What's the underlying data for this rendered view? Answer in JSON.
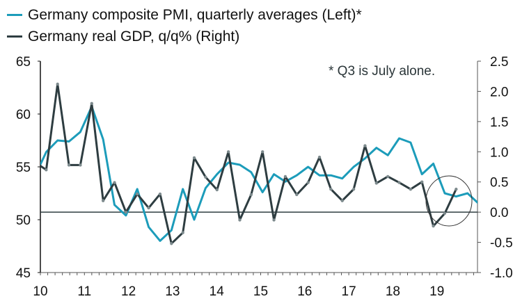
{
  "chart_data": {
    "type": "line",
    "title": "",
    "legend_placement": "top-left",
    "annotation": "* Q3 is July alone.",
    "x": [
      "2009Q4",
      "2010Q1",
      "2010Q2",
      "2010Q3",
      "2010Q4",
      "2011Q1",
      "2011Q2",
      "2011Q3",
      "2011Q4",
      "2012Q1",
      "2012Q2",
      "2012Q3",
      "2012Q4",
      "2013Q1",
      "2013Q2",
      "2013Q3",
      "2013Q4",
      "2014Q1",
      "2014Q2",
      "2014Q3",
      "2014Q4",
      "2015Q1",
      "2015Q2",
      "2015Q3",
      "2015Q4",
      "2016Q1",
      "2016Q2",
      "2016Q3",
      "2016Q4",
      "2017Q1",
      "2017Q2",
      "2017Q3",
      "2017Q4",
      "2018Q1",
      "2018Q2",
      "2018Q3",
      "2018Q4",
      "2019Q1",
      "2019Q2",
      "2019Q3"
    ],
    "x_tick_labels": [
      "10",
      "11",
      "12",
      "13",
      "14",
      "15",
      "16",
      "17",
      "18",
      "19"
    ],
    "left_axis": {
      "ylim": [
        45,
        65
      ],
      "ticks": [
        "65",
        "60",
        "55",
        "50",
        "45"
      ]
    },
    "right_axis": {
      "ylim": [
        -1.0,
        2.5
      ],
      "ticks": [
        "2.5",
        "2.0",
        "1.5",
        "1.0",
        "0.5",
        "0.0",
        "-0.5",
        "-1.0"
      ]
    },
    "reference_line": {
      "axis": "right",
      "value": 0.0
    },
    "highlight_circle": {
      "around": "2019Q1-2019Q3"
    },
    "series": [
      {
        "name": "Germany composite PMI, quarterly averages (Left)*",
        "axis": "left",
        "color": "#1c9cba",
        "values": [
          54.1,
          56.4,
          57.5,
          57.4,
          58.3,
          60.7,
          57.6,
          51.4,
          50.4,
          52.9,
          49.3,
          48.0,
          49.0,
          52.9,
          50.0,
          53.0,
          54.3,
          55.4,
          55.2,
          54.5,
          52.6,
          54.3,
          53.6,
          54.2,
          55.0,
          54.2,
          54.2,
          53.9,
          55.0,
          55.8,
          56.8,
          56.1,
          57.7,
          57.3,
          54.3,
          55.3,
          52.5,
          52.2,
          52.5,
          51.5
        ]
      },
      {
        "name": "Germany real GDP, q/q% (Right)",
        "axis": "right",
        "color": "#2e3d41",
        "values": [
          0.83,
          0.7,
          2.12,
          0.78,
          0.78,
          1.8,
          0.19,
          0.49,
          0.0,
          0.3,
          0.07,
          0.3,
          -0.52,
          -0.34,
          0.9,
          0.58,
          0.37,
          1.0,
          -0.13,
          0.29,
          1.0,
          -0.13,
          0.59,
          0.29,
          0.49,
          0.91,
          0.38,
          0.19,
          0.38,
          1.1,
          0.48,
          0.59,
          0.49,
          0.38,
          0.5,
          -0.23,
          -0.02,
          0.38
        ]
      }
    ]
  }
}
